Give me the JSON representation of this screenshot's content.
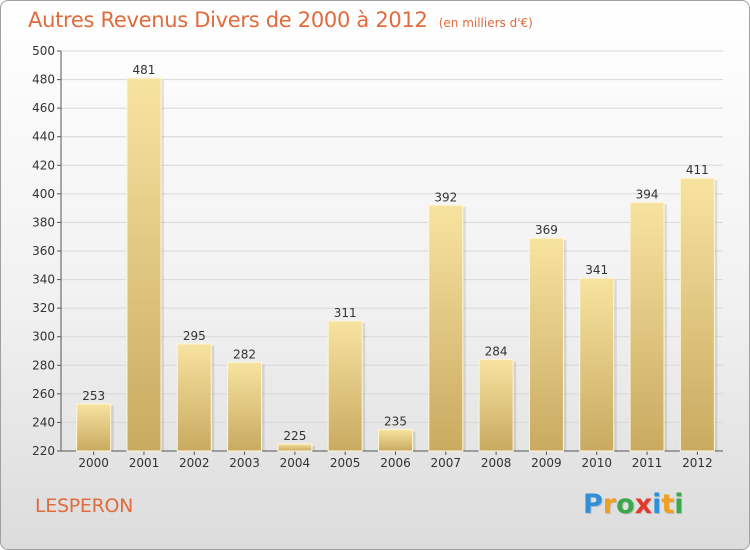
{
  "title": "Autres Revenus Divers de 2000 à 2012",
  "subtitle": "(en milliers d'€)",
  "location": "LESPERON",
  "brand": {
    "text": "Proxiti",
    "letters": [
      {
        "ch": "P",
        "color": "#2f8fd8"
      },
      {
        "ch": "r",
        "color": "#f0a020"
      },
      {
        "ch": "o",
        "color": "#3aa84a"
      },
      {
        "ch": "x",
        "color": "#e03a2e"
      },
      {
        "ch": "i",
        "color": "#2f8fd8"
      },
      {
        "ch": "t",
        "color": "#f0a020"
      },
      {
        "ch": "i",
        "color": "#3aa84a"
      }
    ]
  },
  "colors": {
    "bar_top": "#f7e3a0",
    "bar_bottom": "#c9aa60",
    "title": "#e06b3c",
    "grid": "#d8d8d8"
  },
  "chart_data": {
    "type": "bar",
    "title": "Autres Revenus Divers de 2000 à 2012",
    "subtitle": "(en milliers d'€)",
    "categories": [
      "2000",
      "2001",
      "2002",
      "2003",
      "2004",
      "2005",
      "2006",
      "2007",
      "2008",
      "2009",
      "2010",
      "2011",
      "2012"
    ],
    "values": [
      253,
      481,
      295,
      282,
      225,
      311,
      235,
      392,
      284,
      369,
      341,
      394,
      411
    ],
    "ylim": [
      220,
      500
    ],
    "yticks": [
      220,
      240,
      260,
      280,
      300,
      320,
      340,
      360,
      380,
      400,
      420,
      440,
      460,
      480,
      500
    ],
    "grid": true,
    "legend": "none"
  }
}
